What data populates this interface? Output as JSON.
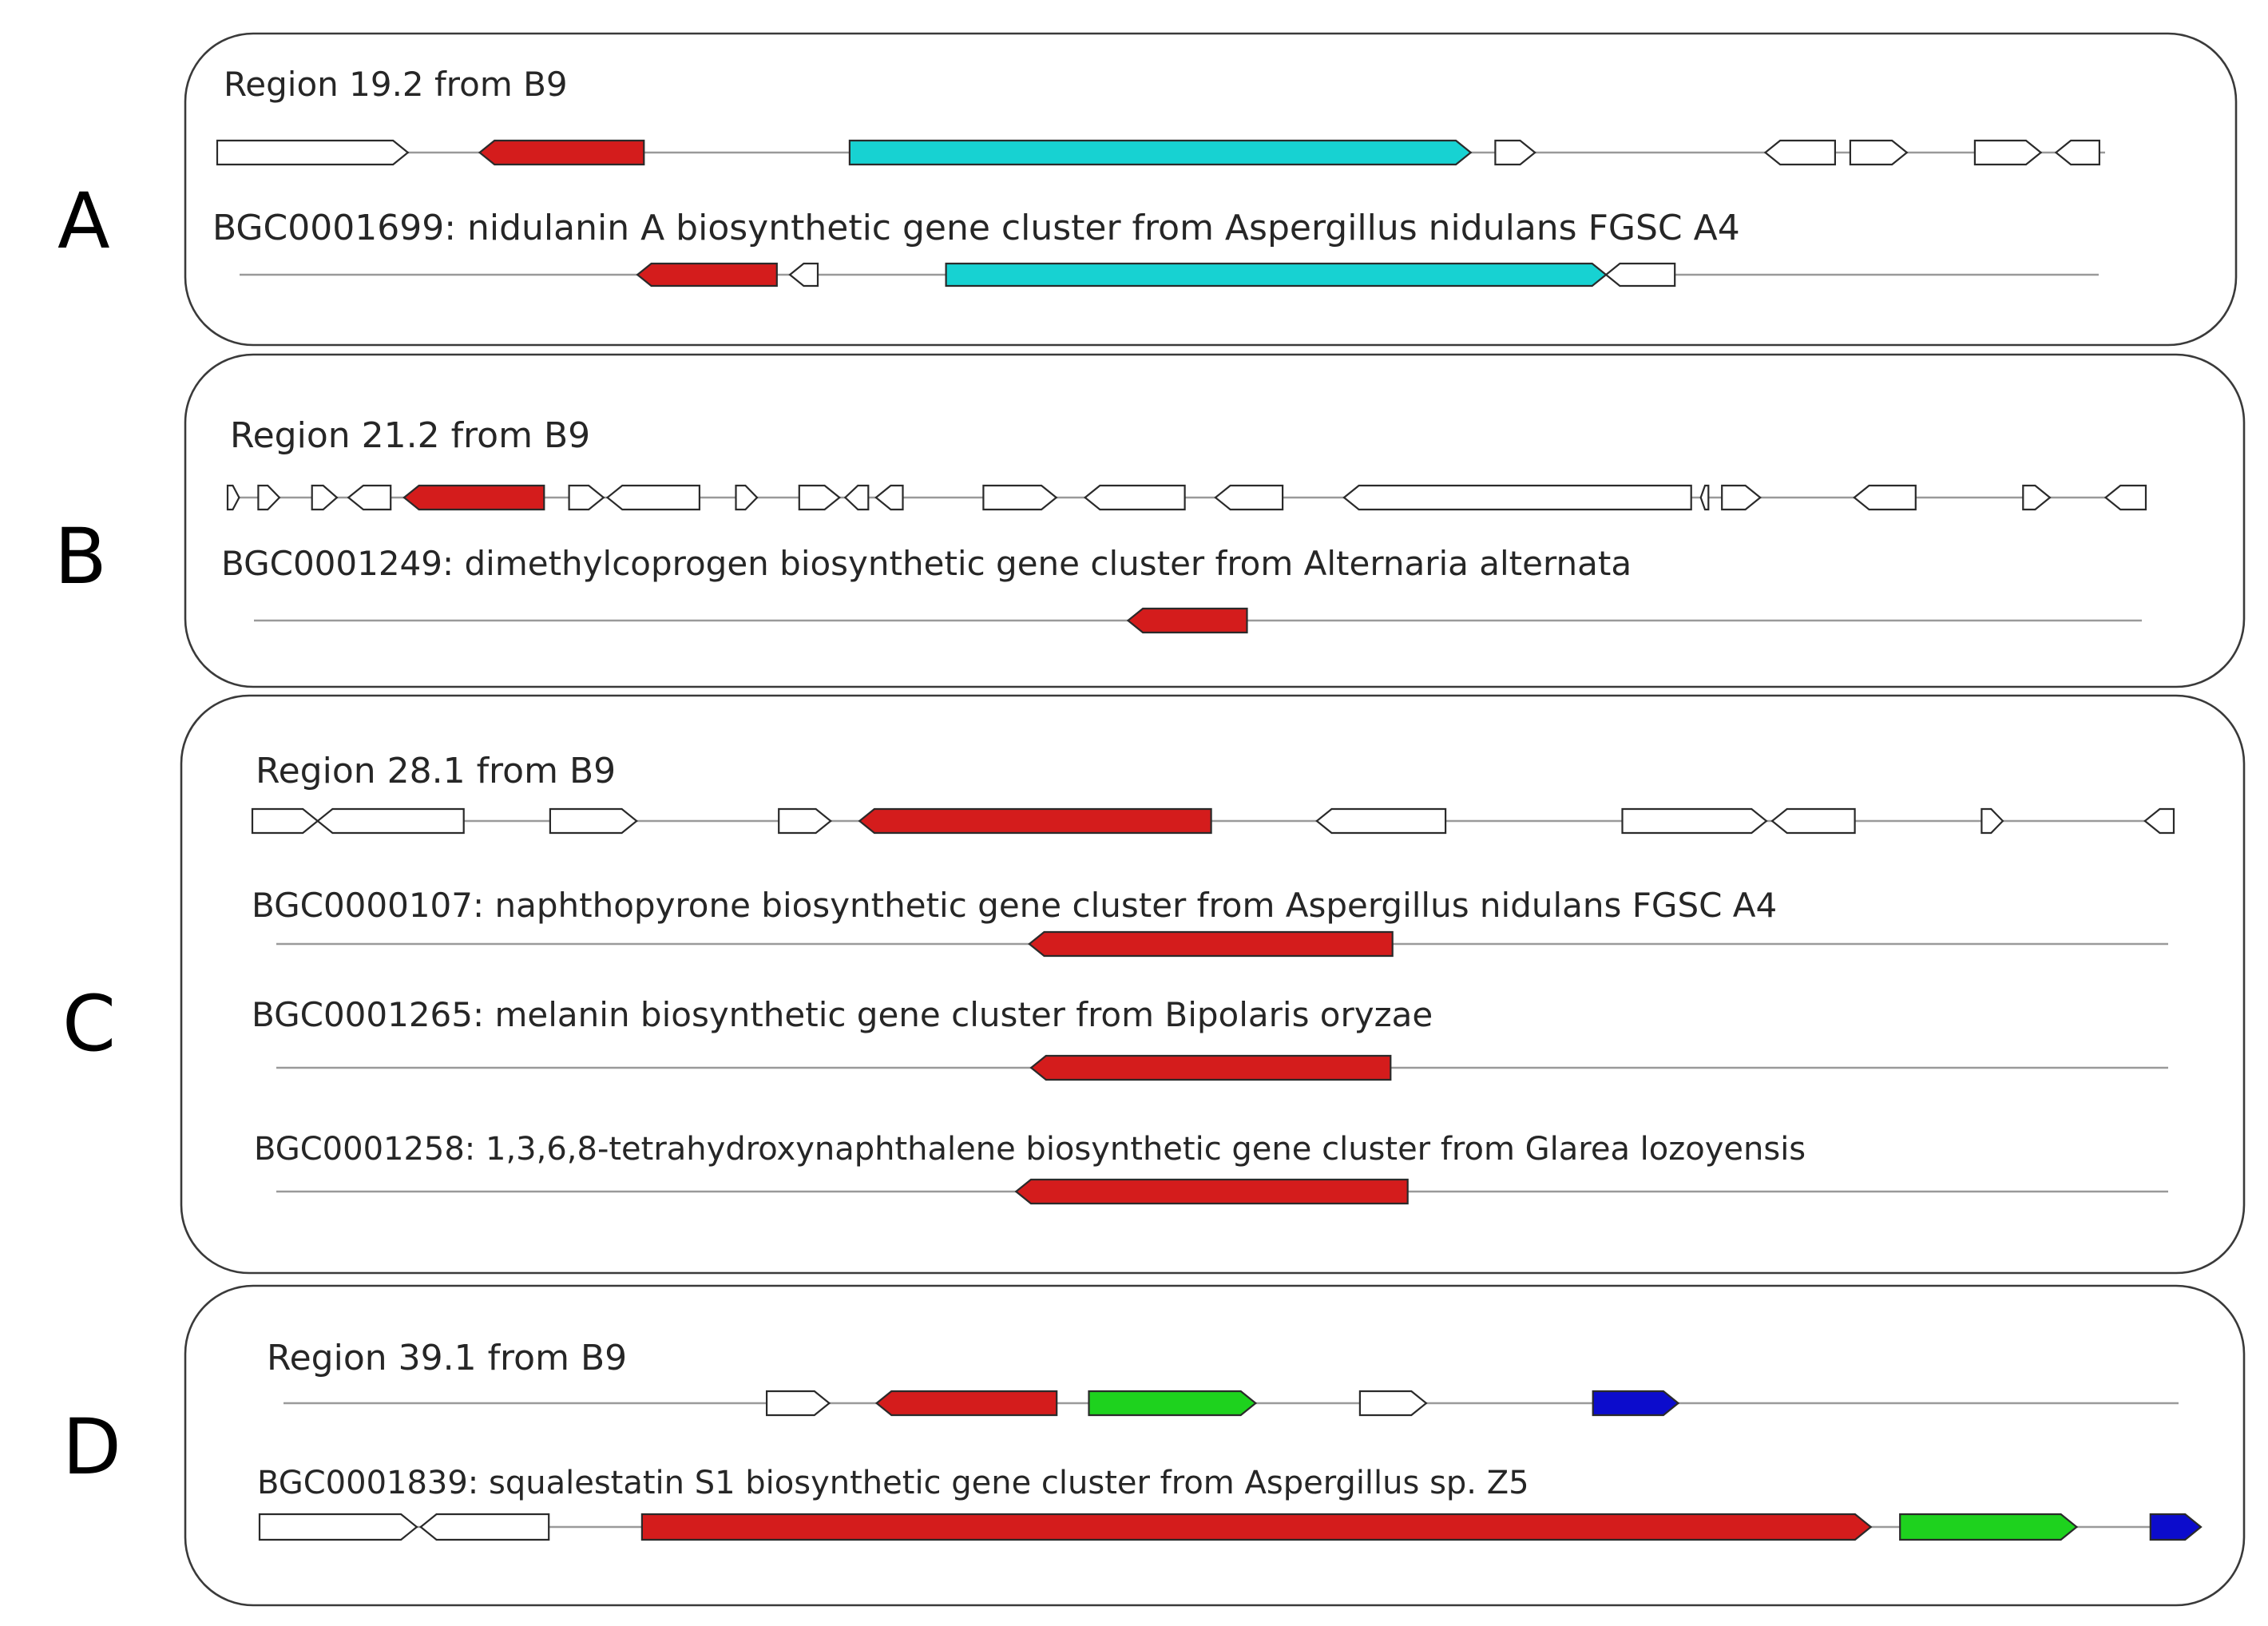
{
  "colors": {
    "core": "#d41c1c",
    "teal": "#17d2d2",
    "green": "#1ed21e",
    "blue": "#0c0ccc",
    "other": "#ffffff"
  },
  "panels": [
    {
      "letter": "A",
      "tracks": [
        {
          "label": "Region 19.2 from B9",
          "genes": [
            {
              "s": 0.0,
              "e": 0.101,
              "dir": "+",
              "kind": "other"
            },
            {
              "s": 0.139,
              "e": 0.226,
              "dir": "-",
              "kind": "core"
            },
            {
              "s": 0.335,
              "e": 0.664,
              "dir": "+",
              "kind": "teal"
            },
            {
              "s": 0.677,
              "e": 0.698,
              "dir": "+",
              "kind": "other"
            },
            {
              "s": 0.82,
              "e": 0.857,
              "dir": "-",
              "kind": "other"
            },
            {
              "s": 0.865,
              "e": 0.895,
              "dir": "+",
              "kind": "other"
            },
            {
              "s": 0.931,
              "e": 0.966,
              "dir": "+",
              "kind": "other"
            },
            {
              "s": 0.974,
              "e": 0.997,
              "dir": "-",
              "kind": "other"
            }
          ]
        },
        {
          "label": "BGC0001699: nidulanin A biosynthetic gene cluster from Aspergillus nidulans FGSC A4",
          "genes": [
            {
              "s": 0.214,
              "e": 0.289,
              "dir": "-",
              "kind": "core"
            },
            {
              "s": 0.296,
              "e": 0.311,
              "dir": "-",
              "kind": "other"
            },
            {
              "s": 0.38,
              "e": 0.735,
              "dir": "+",
              "kind": "teal"
            },
            {
              "s": 0.735,
              "e": 0.772,
              "dir": "-",
              "kind": "other"
            }
          ]
        }
      ]
    },
    {
      "letter": "B",
      "tracks": [
        {
          "label": "Region 21.2 from B9",
          "genes": [
            {
              "s": 0.0,
              "e": 0.006,
              "dir": "+",
              "kind": "other"
            },
            {
              "s": 0.016,
              "e": 0.027,
              "dir": "+",
              "kind": "other"
            },
            {
              "s": 0.044,
              "e": 0.057,
              "dir": "+",
              "kind": "other"
            },
            {
              "s": 0.063,
              "e": 0.085,
              "dir": "-",
              "kind": "other"
            },
            {
              "s": 0.092,
              "e": 0.165,
              "dir": "-",
              "kind": "core"
            },
            {
              "s": 0.178,
              "e": 0.196,
              "dir": "+",
              "kind": "other"
            },
            {
              "s": 0.198,
              "e": 0.246,
              "dir": "-",
              "kind": "other"
            },
            {
              "s": 0.265,
              "e": 0.276,
              "dir": "+",
              "kind": "other"
            },
            {
              "s": 0.298,
              "e": 0.319,
              "dir": "+",
              "kind": "other"
            },
            {
              "s": 0.322,
              "e": 0.334,
              "dir": "-",
              "kind": "other"
            },
            {
              "s": 0.338,
              "e": 0.352,
              "dir": "-",
              "kind": "other"
            },
            {
              "s": 0.394,
              "e": 0.432,
              "dir": "+",
              "kind": "other"
            },
            {
              "s": 0.447,
              "e": 0.499,
              "dir": "-",
              "kind": "other"
            },
            {
              "s": 0.515,
              "e": 0.55,
              "dir": "-",
              "kind": "other"
            },
            {
              "s": 0.582,
              "e": 0.763,
              "dir": "-",
              "kind": "other"
            },
            {
              "s": 0.768,
              "e": 0.772,
              "dir": "-",
              "kind": "other"
            },
            {
              "s": 0.779,
              "e": 0.799,
              "dir": "+",
              "kind": "other"
            },
            {
              "s": 0.848,
              "e": 0.88,
              "dir": "-",
              "kind": "other"
            },
            {
              "s": 0.936,
              "e": 0.95,
              "dir": "+",
              "kind": "other"
            },
            {
              "s": 0.979,
              "e": 1.0,
              "dir": "-",
              "kind": "other"
            }
          ]
        },
        {
          "label": "BGC0001249: dimethylcoprogen biosynthetic gene cluster from Alternaria alternata",
          "genes": [
            {
              "s": 0.463,
              "e": 0.526,
              "dir": "-",
              "kind": "core"
            }
          ]
        }
      ]
    },
    {
      "letter": "C",
      "tracks": [
        {
          "label": "Region 28.1 from B9",
          "genes": [
            {
              "s": 0.0,
              "e": 0.034,
              "dir": "+",
              "kind": "other"
            },
            {
              "s": 0.034,
              "e": 0.11,
              "dir": "-",
              "kind": "other"
            },
            {
              "s": 0.155,
              "e": 0.2,
              "dir": "+",
              "kind": "other"
            },
            {
              "s": 0.274,
              "e": 0.301,
              "dir": "+",
              "kind": "other"
            },
            {
              "s": 0.316,
              "e": 0.499,
              "dir": "-",
              "kind": "core"
            },
            {
              "s": 0.554,
              "e": 0.621,
              "dir": "-",
              "kind": "other"
            },
            {
              "s": 0.713,
              "e": 0.788,
              "dir": "+",
              "kind": "other"
            },
            {
              "s": 0.791,
              "e": 0.834,
              "dir": "-",
              "kind": "other"
            },
            {
              "s": 0.9,
              "e": 0.911,
              "dir": "+",
              "kind": "other"
            },
            {
              "s": 0.985,
              "e": 1.0,
              "dir": "-",
              "kind": "other"
            }
          ]
        },
        {
          "label": "BGC0000107: naphthopyrone biosynthetic gene cluster from Aspergillus nidulans FGSC A4",
          "genes": [
            {
              "s": 0.398,
              "e": 0.59,
              "dir": "-",
              "kind": "core"
            }
          ]
        },
        {
          "label": "BGC0001265: melanin biosynthetic gene cluster from Bipolaris oryzae",
          "genes": [
            {
              "s": 0.399,
              "e": 0.589,
              "dir": "-",
              "kind": "core"
            }
          ]
        },
        {
          "label": "BGC0001258: 1,3,6,8-tetrahydroxynaphthalene biosynthetic gene cluster from Glarea lozoyensis",
          "genes": [
            {
              "s": 0.391,
              "e": 0.598,
              "dir": "-",
              "kind": "core"
            }
          ]
        }
      ]
    },
    {
      "letter": "D",
      "tracks": [
        {
          "label": "Region 39.1 from B9",
          "genes": [
            {
              "s": 0.255,
              "e": 0.288,
              "dir": "+",
              "kind": "other"
            },
            {
              "s": 0.313,
              "e": 0.408,
              "dir": "-",
              "kind": "core"
            },
            {
              "s": 0.425,
              "e": 0.513,
              "dir": "+",
              "kind": "green"
            },
            {
              "s": 0.568,
              "e": 0.603,
              "dir": "+",
              "kind": "other"
            },
            {
              "s": 0.691,
              "e": 0.736,
              "dir": "+",
              "kind": "blue"
            }
          ]
        },
        {
          "label": "BGC0001839: squalestatin S1 biosynthetic gene cluster from Aspergillus sp. Z5",
          "genes": [
            {
              "s": 0.0,
              "e": 0.081,
              "dir": "+",
              "kind": "other"
            },
            {
              "s": 0.083,
              "e": 0.149,
              "dir": "-",
              "kind": "other"
            },
            {
              "s": 0.197,
              "e": 0.83,
              "dir": "+",
              "kind": "core"
            },
            {
              "s": 0.845,
              "e": 0.936,
              "dir": "+",
              "kind": "green"
            },
            {
              "s": 0.974,
              "e": 1.0,
              "dir": "+",
              "kind": "blue"
            }
          ]
        }
      ]
    }
  ]
}
